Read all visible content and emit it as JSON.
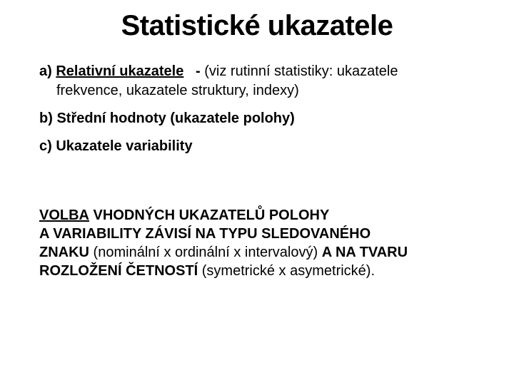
{
  "title": "Statistické ukazatele",
  "items": {
    "a": {
      "label": "a)",
      "term": "Relativní ukazatele",
      "dash": "-",
      "tail1": "(viz rutinní statistiky: ukazatele",
      "tail2": "frekvence, ukazatele struktury, indexy)"
    },
    "b": {
      "label": "b)",
      "text": "Střední hodnoty (ukazatele polohy)"
    },
    "c": {
      "label": "c)",
      "text": "Ukazatele variability"
    }
  },
  "bottom": {
    "w1": "VOLBA",
    "w2": " VHODNÝCH UKAZATELŮ POLOHY",
    "w3": "A VARIABILITY ZÁVISÍ ",
    "w4": "NA TYPU",
    "w5": " SLEDOVANÉHO",
    "w6": "ZNAKU",
    "w7": " (nominální x ordinální x intervalový) ",
    "w8": "A NA TVARU",
    "w9": "ROZLOŽENÍ ČETNOSTÍ",
    "w10": " (symetrické x asymetrické)."
  },
  "colors": {
    "background": "#ffffff",
    "text": "#000000"
  },
  "fonts": {
    "title_size": 40,
    "body_size": 20,
    "family": "Arial"
  }
}
